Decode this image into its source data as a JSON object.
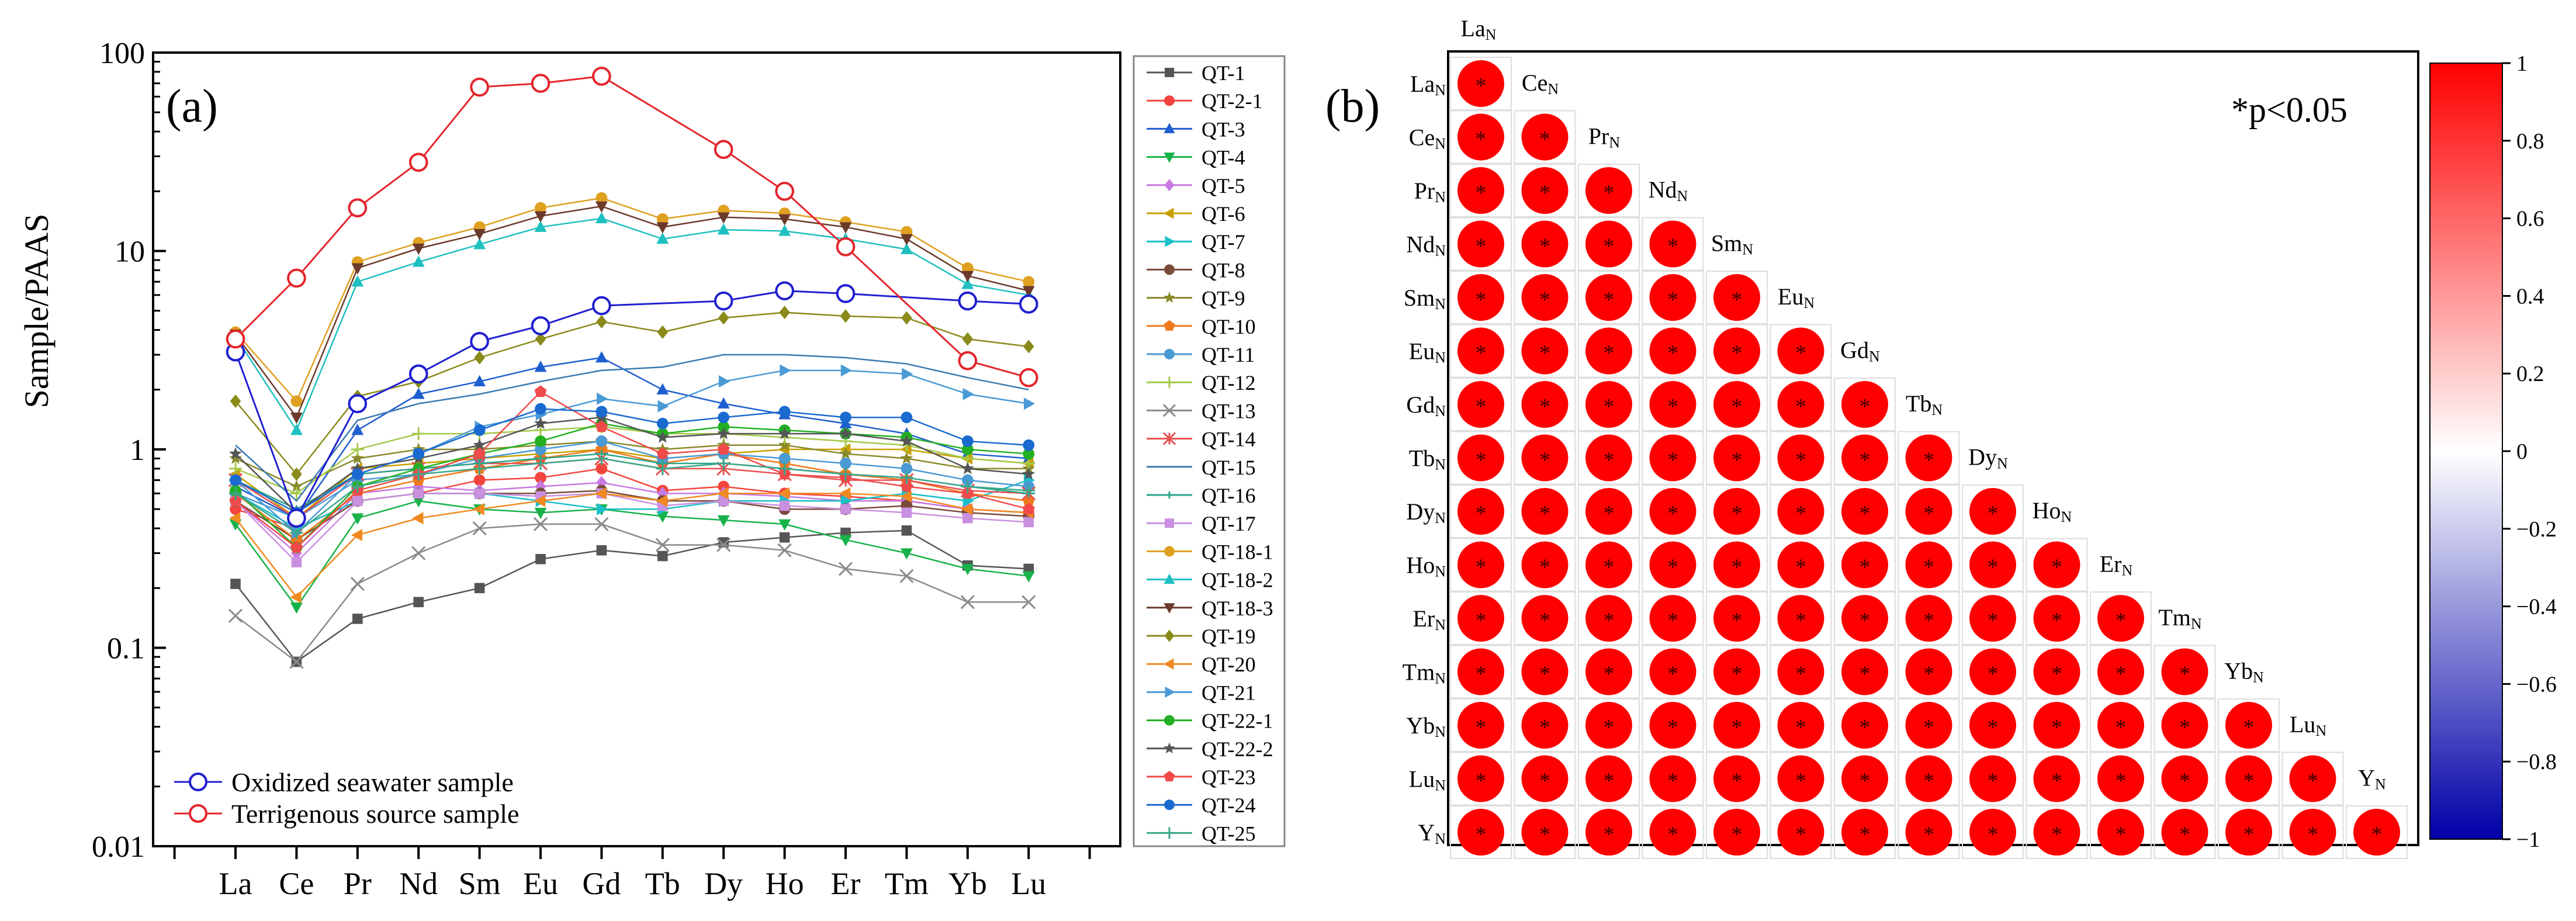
{
  "colors": {
    "seawater": "#1f1fd1",
    "terrigenous": "#e3252b",
    "corr_pos": "#ff0000",
    "corr_neg": "#0000a8"
  },
  "panel_a": {
    "label": "(a)",
    "legend_bottom": [
      {
        "label": "Oxidized seawater sample",
        "color": "#1f1fd1"
      },
      {
        "label": "Terrigenous source sample",
        "color": "#e3252b"
      }
    ]
  },
  "panel_b": {
    "label": "(b)",
    "pnote": "*p<0.05",
    "star": "*",
    "sub": "N",
    "elements": [
      "La",
      "Ce",
      "Pr",
      "Nd",
      "Sm",
      "Eu",
      "Gd",
      "Tb",
      "Dy",
      "Ho",
      "Er",
      "Tm",
      "Yb",
      "Lu",
      "Y"
    ],
    "colorbar_ticks": [
      "1",
      "0.8",
      "0.6",
      "0.4",
      "0.2",
      "0",
      "−0.2",
      "−0.4",
      "−0.6",
      "−0.8",
      "−1"
    ]
  },
  "chart_data": [
    {
      "type": "line",
      "title": "",
      "xlabel": "",
      "ylabel": "Sample/PAAS",
      "yscale": "log",
      "ylim": [
        0.01,
        100
      ],
      "yticks": [
        "0.01",
        "0.1",
        "1",
        "10",
        "100"
      ],
      "categories": [
        "La",
        "Ce",
        "Pr",
        "Nd",
        "Sm",
        "Eu",
        "Gd",
        "Tb",
        "Dy",
        "Ho",
        "Er",
        "Tm",
        "Yb",
        "Lu"
      ],
      "series": [
        {
          "name": "QT-1",
          "color": "#555555",
          "marker": "square",
          "values": [
            0.21,
            0.085,
            0.14,
            0.17,
            0.2,
            0.28,
            0.31,
            0.29,
            0.34,
            0.36,
            0.38,
            0.39,
            0.26,
            0.25
          ]
        },
        {
          "name": "QT-2-1",
          "color": "#f2443d",
          "marker": "circle",
          "values": [
            0.5,
            0.4,
            0.55,
            0.6,
            0.7,
            0.72,
            0.8,
            0.62,
            0.65,
            0.6,
            0.58,
            0.55,
            0.5,
            0.48
          ]
        },
        {
          "name": "QT-3",
          "color": "#1f5fd1",
          "marker": "triangle-up",
          "values": [
            0.65,
            0.45,
            1.25,
            1.9,
            2.2,
            2.6,
            2.9,
            2.0,
            1.7,
            1.5,
            1.35,
            1.2,
            0.95,
            0.9
          ]
        },
        {
          "name": "QT-4",
          "color": "#17b24a",
          "marker": "triangle-down",
          "values": [
            0.42,
            0.16,
            0.45,
            0.55,
            0.5,
            0.48,
            0.5,
            0.46,
            0.44,
            0.42,
            0.35,
            0.3,
            0.25,
            0.23
          ]
        },
        {
          "name": "QT-5",
          "color": "#c77ae0",
          "marker": "diamond",
          "values": [
            0.55,
            0.3,
            0.6,
            0.65,
            0.62,
            0.65,
            0.68,
            0.6,
            0.6,
            0.58,
            0.55,
            0.55,
            0.5,
            0.48
          ]
        },
        {
          "name": "QT-6",
          "color": "#c8a000",
          "marker": "triangle-left",
          "values": [
            0.75,
            0.45,
            0.8,
            0.85,
            0.9,
            0.95,
            1.0,
            0.9,
            0.95,
            1.0,
            1.0,
            1.0,
            0.9,
            0.85
          ]
        },
        {
          "name": "QT-7",
          "color": "#1bbfc9",
          "marker": "triangle-right",
          "values": [
            0.6,
            0.4,
            0.55,
            0.6,
            0.6,
            0.55,
            0.5,
            0.5,
            0.55,
            0.55,
            0.55,
            0.6,
            0.55,
            0.7
          ]
        },
        {
          "name": "QT-8",
          "color": "#7a4a3a",
          "marker": "circle",
          "values": [
            0.55,
            0.35,
            0.55,
            0.6,
            0.6,
            0.6,
            0.62,
            0.55,
            0.55,
            0.5,
            0.5,
            0.52,
            0.48,
            0.46
          ]
        },
        {
          "name": "QT-9",
          "color": "#8a8a2a",
          "marker": "star",
          "values": [
            0.9,
            0.65,
            0.9,
            1.0,
            1.0,
            1.05,
            1.1,
            1.0,
            1.05,
            1.05,
            0.95,
            0.9,
            0.8,
            0.8
          ]
        },
        {
          "name": "QT-10",
          "color": "#f07a1a",
          "marker": "pentagon",
          "values": [
            0.6,
            0.35,
            0.6,
            0.7,
            0.8,
            0.9,
            1.0,
            0.85,
            0.95,
            0.85,
            0.75,
            0.7,
            0.6,
            0.55
          ]
        },
        {
          "name": "QT-11",
          "color": "#4a9ad6",
          "marker": "circle",
          "values": [
            0.6,
            0.45,
            0.7,
            0.75,
            0.9,
            1.0,
            1.1,
            0.9,
            0.95,
            0.9,
            0.85,
            0.8,
            0.7,
            0.65
          ]
        },
        {
          "name": "QT-12",
          "color": "#a5c94a",
          "marker": "plus",
          "values": [
            0.8,
            0.6,
            1.0,
            1.2,
            1.2,
            1.25,
            1.3,
            1.2,
            1.2,
            1.15,
            1.1,
            1.05,
            0.9,
            0.85
          ]
        },
        {
          "name": "QT-13",
          "color": "#8a8a8a",
          "marker": "x",
          "values": [
            0.145,
            0.085,
            0.21,
            0.3,
            0.4,
            0.42,
            0.42,
            0.33,
            0.33,
            0.31,
            0.25,
            0.23,
            0.17,
            0.17
          ]
        },
        {
          "name": "QT-14",
          "color": "#e85050",
          "marker": "asterisk",
          "values": [
            0.7,
            0.45,
            0.75,
            0.8,
            0.85,
            0.85,
            0.9,
            0.8,
            0.8,
            0.75,
            0.7,
            0.7,
            0.62,
            0.6
          ]
        },
        {
          "name": "QT-15",
          "color": "#3a7ab0",
          "marker": "none",
          "values": [
            1.05,
            0.55,
            1.4,
            1.7,
            1.9,
            2.2,
            2.5,
            2.6,
            3.0,
            3.0,
            2.9,
            2.7,
            2.3,
            2.0
          ]
        },
        {
          "name": "QT-16",
          "color": "#2aa58a",
          "marker": "dash",
          "values": [
            0.7,
            0.5,
            0.75,
            0.8,
            0.85,
            0.9,
            0.95,
            0.85,
            0.85,
            0.8,
            0.75,
            0.72,
            0.65,
            0.6
          ]
        },
        {
          "name": "QT-17",
          "color": "#c990e0",
          "marker": "square",
          "values": [
            0.55,
            0.27,
            0.55,
            0.6,
            0.6,
            0.58,
            0.6,
            0.52,
            0.55,
            0.52,
            0.5,
            0.48,
            0.45,
            0.43
          ]
        },
        {
          "name": "QT-18-1",
          "color": "#e0a020",
          "marker": "circle",
          "values": [
            3.9,
            1.75,
            8.8,
            11.0,
            13.2,
            16.5,
            18.5,
            14.5,
            16.0,
            15.5,
            14.0,
            12.5,
            8.2,
            7.0
          ]
        },
        {
          "name": "QT-18-2",
          "color": "#1ec0c0",
          "marker": "triangle-up",
          "values": [
            3.7,
            1.25,
            7.0,
            8.8,
            10.8,
            13.2,
            14.6,
            11.5,
            12.8,
            12.6,
            11.5,
            10.2,
            6.8,
            6.0
          ]
        },
        {
          "name": "QT-18-3",
          "color": "#6b3a2a",
          "marker": "triangle-down",
          "values": [
            3.8,
            1.45,
            8.2,
            10.3,
            12.2,
            15.0,
            16.8,
            13.2,
            14.8,
            14.5,
            13.2,
            11.5,
            7.5,
            6.3
          ]
        },
        {
          "name": "QT-19",
          "color": "#8a8a1a",
          "marker": "diamond",
          "values": [
            1.75,
            0.75,
            1.85,
            2.2,
            2.9,
            3.6,
            4.4,
            3.9,
            4.6,
            4.9,
            4.7,
            4.6,
            3.6,
            3.3
          ]
        },
        {
          "name": "QT-20",
          "color": "#f08a20",
          "marker": "triangle-left",
          "values": [
            0.45,
            0.18,
            0.37,
            0.45,
            0.5,
            0.55,
            0.6,
            0.55,
            0.6,
            0.6,
            0.6,
            0.58,
            0.5,
            0.48
          ]
        },
        {
          "name": "QT-21",
          "color": "#4a9ad6",
          "marker": "triangle-right",
          "values": [
            0.7,
            0.38,
            0.75,
            0.95,
            1.3,
            1.5,
            1.8,
            1.65,
            2.2,
            2.5,
            2.5,
            2.4,
            1.9,
            1.7
          ]
        },
        {
          "name": "QT-22-1",
          "color": "#22b022",
          "marker": "circle",
          "values": [
            0.62,
            0.32,
            0.65,
            0.8,
            0.95,
            1.1,
            1.35,
            1.2,
            1.3,
            1.25,
            1.2,
            1.15,
            1.0,
            0.95
          ]
        },
        {
          "name": "QT-22-2",
          "color": "#555555",
          "marker": "star",
          "values": [
            0.95,
            0.48,
            0.8,
            0.9,
            1.05,
            1.35,
            1.45,
            1.15,
            1.2,
            1.2,
            1.2,
            1.1,
            0.8,
            0.75
          ]
        },
        {
          "name": "QT-23",
          "color": "#f04a4a",
          "marker": "pentagon",
          "values": [
            0.55,
            0.32,
            0.62,
            0.75,
            0.95,
            1.95,
            1.3,
            0.95,
            1.0,
            0.75,
            0.72,
            0.65,
            0.6,
            0.5
          ]
        },
        {
          "name": "QT-24",
          "color": "#1a6ad0",
          "marker": "circle",
          "values": [
            0.7,
            0.48,
            0.75,
            0.95,
            1.25,
            1.6,
            1.55,
            1.35,
            1.45,
            1.55,
            1.45,
            1.45,
            1.1,
            1.05
          ]
        },
        {
          "name": "QT-25",
          "color": "#3aa78a",
          "marker": "plus",
          "values": [
            0.6,
            0.38,
            0.65,
            0.75,
            0.8,
            0.85,
            0.9,
            0.8,
            0.85,
            0.8,
            0.75,
            0.72,
            0.65,
            0.62
          ]
        },
        {
          "name": "Oxidized seawater sample",
          "color": "#1f1fd1",
          "marker": "open-circle",
          "values": [
            3.1,
            0.45,
            1.7,
            2.4,
            3.5,
            4.2,
            5.3,
            null,
            5.6,
            6.3,
            6.1,
            null,
            5.6,
            5.4
          ]
        },
        {
          "name": "Terrigenous source sample",
          "color": "#e3252b",
          "marker": "open-circle",
          "values": [
            3.6,
            7.3,
            16.5,
            28.0,
            67.0,
            70.0,
            76.0,
            null,
            32.5,
            20.0,
            10.5,
            null,
            2.8,
            2.3
          ]
        }
      ]
    },
    {
      "type": "heatmap",
      "title": "",
      "variables": [
        "La",
        "Ce",
        "Pr",
        "Nd",
        "Sm",
        "Eu",
        "Gd",
        "Tb",
        "Dy",
        "Ho",
        "Er",
        "Tm",
        "Yb",
        "Lu",
        "Y"
      ],
      "lower_triangle_correlation": 1.0,
      "all_significant_p_lt": 0.05,
      "colorbar_range": [
        -1,
        1
      ]
    }
  ]
}
